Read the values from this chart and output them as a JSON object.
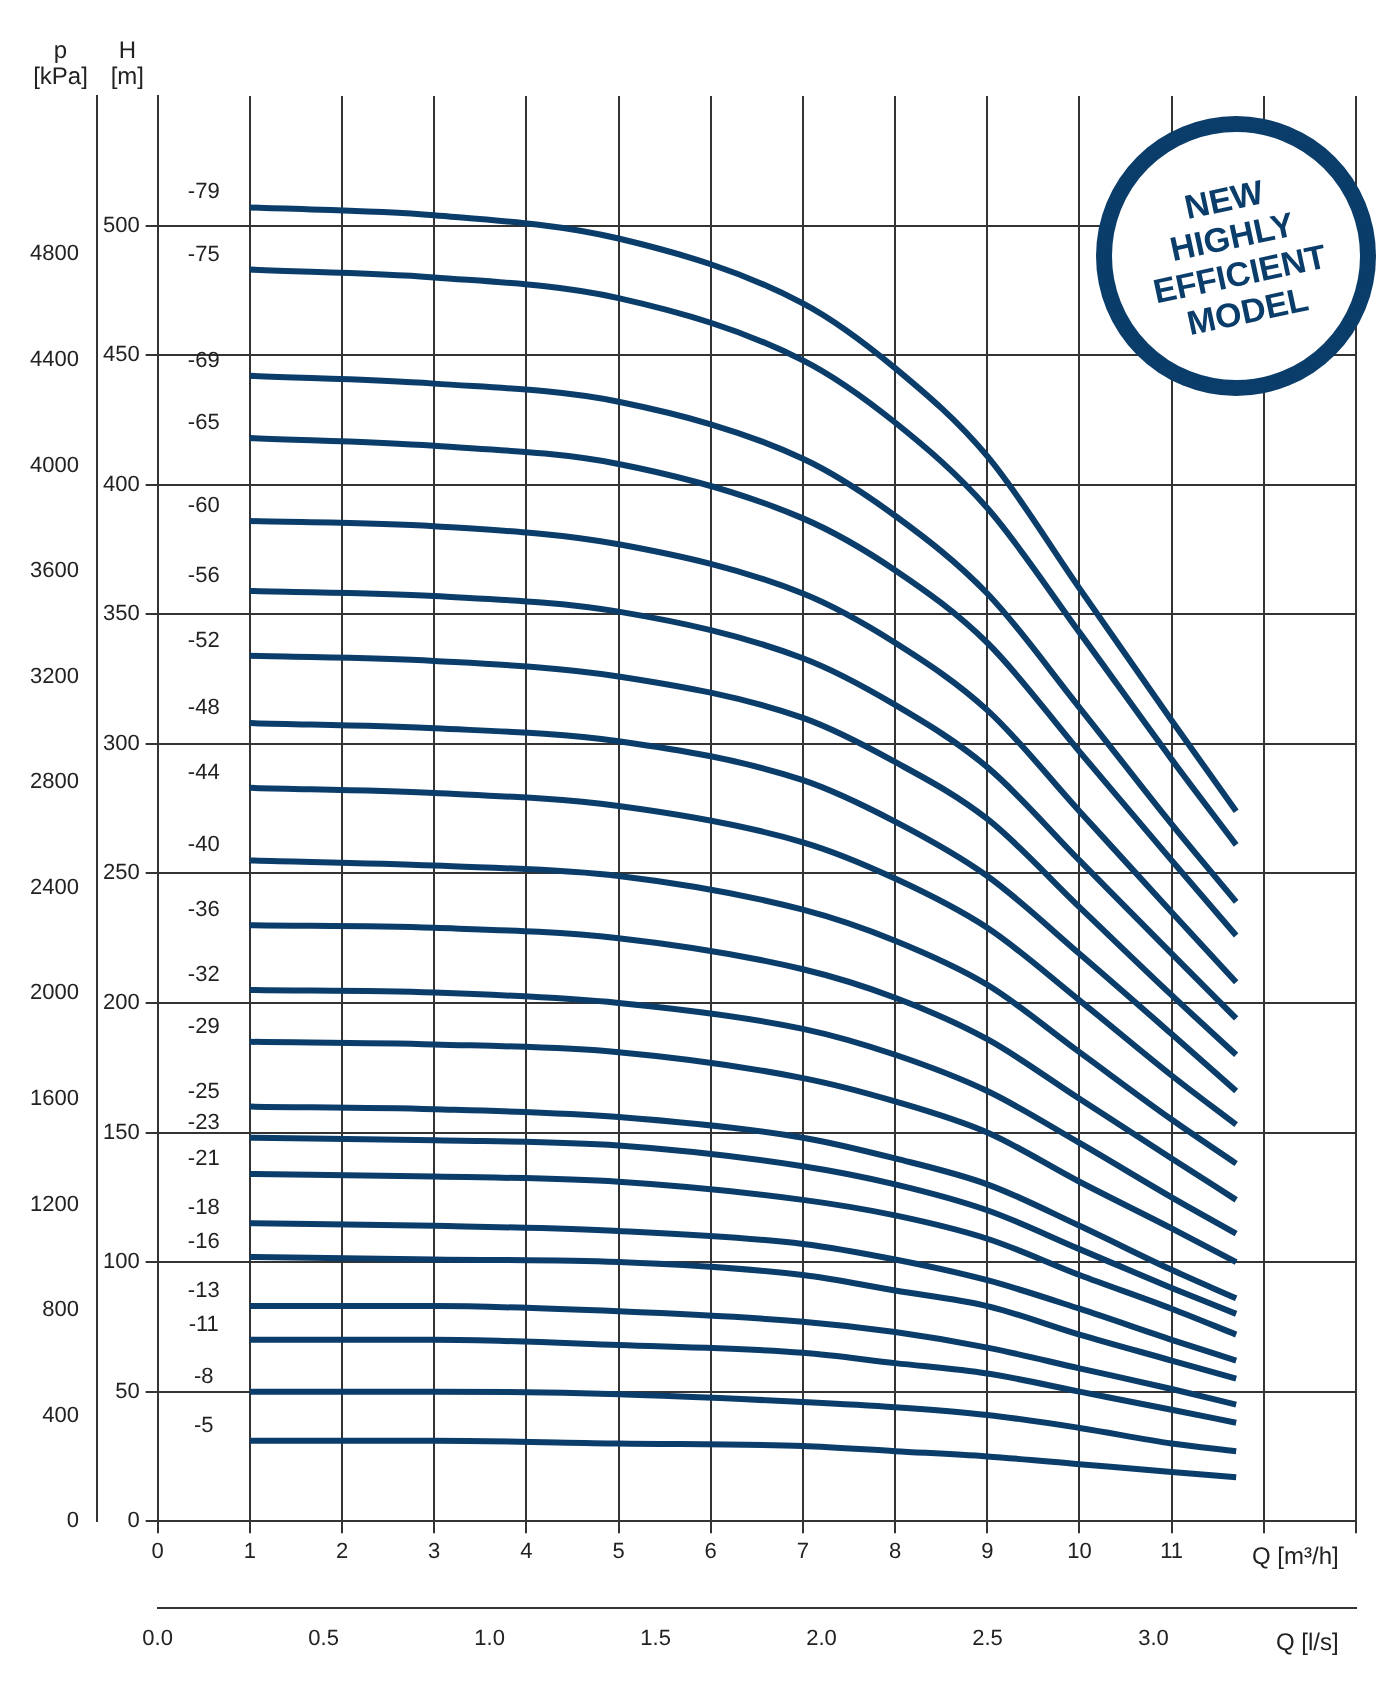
{
  "chart_data": {
    "type": "line",
    "xlabel": "Q [m³/h]",
    "x2label": "Q [l/s]",
    "ylabel": "H [m]",
    "y2label": "p [kPa]",
    "xlim": [
      0,
      13
    ],
    "xticks": [
      0,
      1,
      2,
      3,
      4,
      5,
      6,
      7,
      8,
      9,
      10,
      11,
      {
        "value": 12,
        "label": null
      },
      {
        "value": 13,
        "label": null
      }
    ],
    "x2lim": [
      0,
      3.61
    ],
    "x2ticks": [
      {
        "value": 0,
        "label": "0.0"
      },
      0.5,
      {
        "value": 1,
        "label": "1.0"
      },
      1.5,
      {
        "value": 2,
        "label": "2.0"
      },
      2.5,
      {
        "value": 3,
        "label": "3.0"
      }
    ],
    "ylim": [
      0,
      550
    ],
    "yticks": [
      0,
      50,
      100,
      150,
      200,
      250,
      300,
      350,
      400,
      450,
      500
    ],
    "y2lim": [
      0,
      5400
    ],
    "y2ticks": [
      0,
      400,
      800,
      1200,
      1600,
      2000,
      2400,
      2800,
      3200,
      3600,
      4000,
      4400,
      4800
    ],
    "grid": true,
    "x": [
      1,
      3,
      5,
      7,
      8,
      9,
      10,
      11,
      11.7
    ],
    "series": [
      {
        "name": "-79",
        "color": "#0b3d6b",
        "values": [
          507,
          504,
          495,
          470,
          445,
          411,
          360,
          309,
          274
        ]
      },
      {
        "name": "-75",
        "color": "#0b3d6b",
        "values": [
          483,
          480,
          472,
          448,
          424,
          391,
          343,
          294,
          261
        ]
      },
      {
        "name": "-69",
        "color": "#0b3d6b",
        "values": [
          442,
          439,
          432,
          410,
          388,
          358,
          314,
          269,
          239
        ]
      },
      {
        "name": "-65",
        "color": "#0b3d6b",
        "values": [
          418,
          415,
          408,
          387,
          367,
          339,
          297,
          255,
          226
        ]
      },
      {
        "name": "-60",
        "color": "#0b3d6b",
        "values": [
          386,
          384,
          377,
          358,
          339,
          313,
          274,
          235,
          208
        ]
      },
      {
        "name": "-56",
        "color": "#0b3d6b",
        "values": [
          359,
          357,
          351,
          333,
          315,
          291,
          255,
          219,
          194
        ]
      },
      {
        "name": "-52",
        "color": "#0b3d6b",
        "values": [
          334,
          332,
          326,
          310,
          293,
          271,
          237,
          203,
          180
        ]
      },
      {
        "name": "-48",
        "color": "#0b3d6b",
        "values": [
          308,
          306,
          301,
          286,
          270,
          249,
          219,
          188,
          166
        ]
      },
      {
        "name": "-44",
        "color": "#0b3d6b",
        "values": [
          283,
          281,
          276,
          262,
          248,
          229,
          201,
          172,
          153
        ]
      },
      {
        "name": "-40",
        "color": "#0b3d6b",
        "values": [
          255,
          253,
          249,
          236,
          224,
          207,
          181,
          155,
          138
        ]
      },
      {
        "name": "-36",
        "color": "#0b3d6b",
        "values": [
          230,
          229,
          225,
          213,
          202,
          186,
          163,
          140,
          124
        ]
      },
      {
        "name": "-32",
        "color": "#0b3d6b",
        "values": [
          205,
          204,
          200,
          190,
          180,
          166,
          146,
          125,
          111
        ]
      },
      {
        "name": "-29",
        "color": "#0b3d6b",
        "values": [
          185,
          184,
          181,
          171,
          162,
          150,
          131,
          113,
          100
        ]
      },
      {
        "name": "-25",
        "color": "#0b3d6b",
        "values": [
          160,
          159,
          156,
          148,
          140,
          130,
          114,
          97,
          86
        ]
      },
      {
        "name": "-23",
        "color": "#0b3d6b",
        "values": [
          148,
          147,
          145,
          137,
          130,
          120,
          105,
          90,
          80
        ]
      },
      {
        "name": "-21",
        "color": "#0b3d6b",
        "values": [
          134,
          133,
          131,
          124,
          118,
          109,
          95,
          82,
          72
        ]
      },
      {
        "name": "-18",
        "color": "#0b3d6b",
        "values": [
          115,
          114,
          112,
          107,
          101,
          93,
          82,
          70,
          62
        ]
      },
      {
        "name": "-16",
        "color": "#0b3d6b",
        "values": [
          102,
          101,
          100,
          95,
          89,
          83,
          72,
          62,
          55
        ]
      },
      {
        "name": "-13",
        "color": "#0b3d6b",
        "values": [
          83,
          83,
          81,
          77,
          73,
          67,
          59,
          51,
          45
        ]
      },
      {
        "name": "-11",
        "color": "#0b3d6b",
        "values": [
          70,
          70,
          68,
          65,
          61,
          57,
          50,
          43,
          38
        ]
      },
      {
        "name": "-8",
        "color": "#0b3d6b",
        "values": [
          50,
          50,
          49,
          46,
          44,
          41,
          36,
          30,
          27
        ]
      },
      {
        "name": "-5",
        "color": "#0b3d6b",
        "values": [
          31,
          31,
          30,
          29,
          27,
          25,
          22,
          19,
          17
        ]
      }
    ],
    "annotations": [
      "NEW HIGHLY EFFICIENT MODEL"
    ]
  }
}
